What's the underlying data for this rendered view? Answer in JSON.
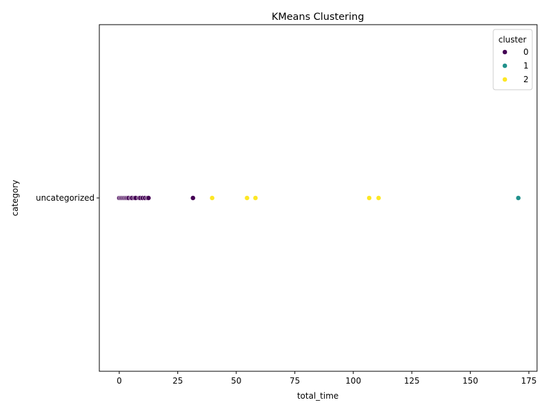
{
  "chart_data": {
    "type": "scatter",
    "title": "KMeans Clustering",
    "xlabel": "total_time",
    "ylabel": "category",
    "xlim": [
      -8.5,
      178.5
    ],
    "x_ticks": [
      0,
      25,
      50,
      75,
      100,
      125,
      150,
      175
    ],
    "y_categories": [
      "uncategorized"
    ],
    "grid": false,
    "legend": {
      "title": "cluster",
      "placement": "top-right",
      "entries": [
        {
          "label": "0",
          "color": "#440154"
        },
        {
          "label": "1",
          "color": "#21918c"
        },
        {
          "label": "2",
          "color": "#fde725"
        }
      ]
    },
    "series": [
      {
        "name": "0",
        "color": "#440154",
        "category": "uncategorized",
        "x": [
          0.0,
          0.5,
          1.0,
          1.5,
          2.0,
          2.5,
          3.0,
          3.5,
          4.0,
          5.0,
          5.5,
          6.5,
          7.0,
          8.5,
          9.0,
          10.0,
          11.0,
          12.0,
          12.5,
          31.5
        ]
      },
      {
        "name": "1",
        "color": "#21918c",
        "category": "uncategorized",
        "x": [
          170.5
        ]
      },
      {
        "name": "2",
        "color": "#fde725",
        "category": "uncategorized",
        "x": [
          39.7,
          54.6,
          58.2,
          106.8,
          110.8
        ]
      }
    ]
  }
}
